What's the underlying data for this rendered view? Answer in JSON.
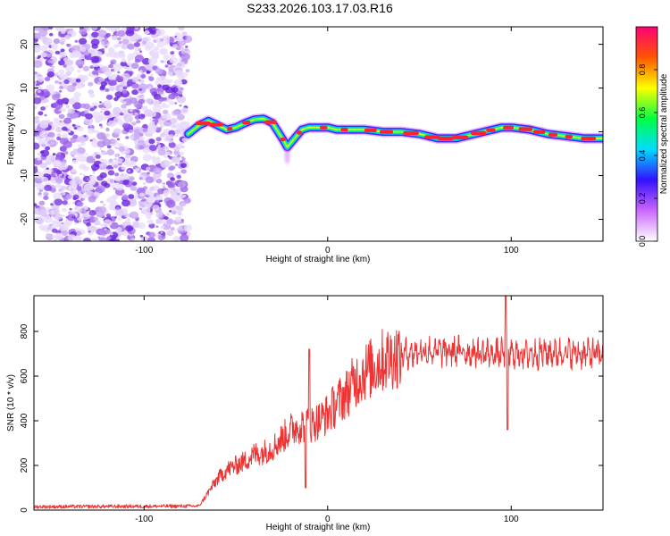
{
  "title": "S233.2026.103.17.03.R16",
  "chart_data": [
    {
      "type": "heatmap",
      "xlabel": "Height of straight line (km)",
      "ylabel": "Frequency (Hz)",
      "xlim": [
        -160,
        150
      ],
      "ylim": [
        -25,
        24
      ],
      "xticks": [
        -100,
        0,
        100
      ],
      "xtick_labels": [
        "-100",
        "0",
        "100"
      ],
      "yticks": [
        -20,
        -10,
        0,
        10,
        20
      ],
      "ytick_labels": [
        "-20",
        "-10",
        "0",
        "10",
        "20"
      ],
      "noise_region_x": [
        -160,
        -76
      ],
      "ridge": {
        "x": [
          -76,
          -70,
          -65,
          -60,
          -55,
          -50,
          -45,
          -40,
          -35,
          -30,
          -27,
          -24,
          -22,
          -20,
          -17,
          -14,
          -10,
          -5,
          0,
          5,
          10,
          20,
          30,
          40,
          50,
          55,
          60,
          70,
          75,
          80,
          85,
          90,
          95,
          100,
          110,
          120,
          130,
          140,
          150
        ],
        "freq_hz": [
          -0.5,
          1.5,
          2.5,
          1.5,
          0.5,
          1.0,
          2.0,
          2.8,
          3.0,
          2.0,
          0.0,
          -2.0,
          -3.5,
          -2.5,
          -1.0,
          0.5,
          1.0,
          1.0,
          1.0,
          0.5,
          0.5,
          0.5,
          0.0,
          0.0,
          -0.5,
          -1.0,
          -1.5,
          -1.5,
          -1.0,
          -0.5,
          0.0,
          0.5,
          1.0,
          1.0,
          0.5,
          -0.5,
          -1.0,
          -1.5,
          -1.5
        ]
      },
      "colorbar": {
        "label": "Normalized spectral amplitude",
        "range": [
          0.0,
          1.0
        ],
        "ticks": [
          0.0,
          0.2,
          0.4,
          0.6,
          0.8
        ],
        "tick_labels": [
          "0.0",
          "0.2",
          "0.4",
          "0.6",
          "0.8"
        ],
        "colors": [
          "#ffffff",
          "#cc66ff",
          "#3311ff",
          "#00ddff",
          "#00ff44",
          "#ffff00",
          "#ff5500",
          "#ff0077"
        ]
      }
    },
    {
      "type": "line",
      "xlabel": "Height of straight line (km)",
      "ylabel": "SNR (10 * v/v)",
      "xlim": [
        -160,
        150
      ],
      "ylim": [
        0,
        960
      ],
      "xticks": [
        -100,
        0,
        100
      ],
      "xtick_labels": [
        "-100",
        "0",
        "100"
      ],
      "yticks": [
        0,
        200,
        400,
        600,
        800
      ],
      "ytick_labels": [
        "0",
        "200",
        "400",
        "600",
        "800"
      ],
      "series": [
        {
          "name": "SNR",
          "color": "#ee3333",
          "x": [
            -160,
            -70,
            -65,
            -60,
            -55,
            -50,
            -45,
            -40,
            -35,
            -30,
            -25,
            -20,
            -15,
            -10,
            -5,
            0,
            5,
            10,
            15,
            20,
            25,
            30,
            40,
            50,
            60,
            70,
            80,
            90,
            95,
            100,
            105,
            110,
            120,
            130,
            140,
            150
          ],
          "y": [
            15,
            18,
            80,
            140,
            180,
            200,
            220,
            250,
            260,
            280,
            320,
            360,
            380,
            380,
            400,
            430,
            480,
            520,
            580,
            620,
            640,
            670,
            700,
            710,
            710,
            710,
            705,
            700,
            700,
            700,
            700,
            700,
            705,
            705,
            700,
            700
          ],
          "spikes": [
            {
              "x": -10,
              "y": 720
            },
            {
              "x": -12,
              "y": 100
            },
            {
              "x": 97,
              "y": 960
            },
            {
              "x": 98,
              "y": 360
            }
          ]
        }
      ]
    }
  ]
}
